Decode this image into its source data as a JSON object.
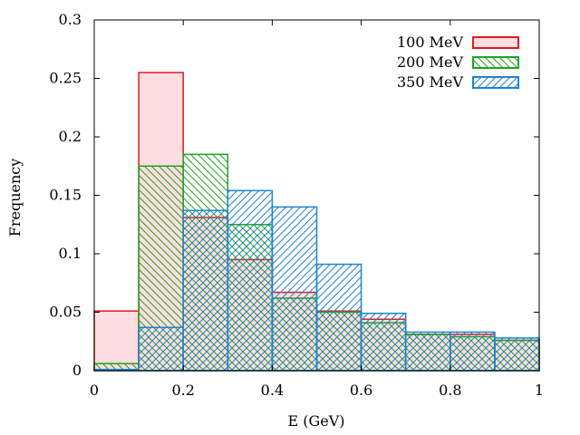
{
  "chart_data": {
    "type": "bar",
    "subtype": "overlaid step histogram",
    "xlabel": "E (GeV)",
    "ylabel": "Frequency",
    "xlim": [
      0,
      1
    ],
    "ylim": [
      0,
      0.3
    ],
    "x_ticks": [
      "0",
      "0.2",
      "0.4",
      "0.6",
      "0.8",
      "1"
    ],
    "x_tick_values": [
      0,
      0.2,
      0.4,
      0.6,
      0.8,
      1.0
    ],
    "y_ticks": [
      "0",
      "0.05",
      "0.1",
      "0.15",
      "0.2",
      "0.25",
      "0.3"
    ],
    "y_tick_values": [
      0,
      0.05,
      0.1,
      0.15,
      0.2,
      0.25,
      0.3
    ],
    "bin_edges": [
      0.0,
      0.1,
      0.2,
      0.3,
      0.4,
      0.5,
      0.6,
      0.7,
      0.8,
      0.9,
      1.0
    ],
    "legend_position": "top-right",
    "grid": false,
    "series": [
      {
        "name": "100 MeV",
        "color": "#e41a1c",
        "fill": "solid light pink",
        "fill_color": "#ffdde0",
        "values": [
          0.051,
          0.255,
          0.131,
          0.095,
          0.067,
          0.051,
          0.044,
          0.031,
          0.031,
          0.026
        ]
      },
      {
        "name": "200 MeV",
        "color": "#21a321",
        "fill": "hatch back-diagonal",
        "values": [
          0.006,
          0.175,
          0.185,
          0.125,
          0.062,
          0.05,
          0.041,
          0.031,
          0.029,
          0.026
        ]
      },
      {
        "name": "350 MeV",
        "color": "#1f82d2",
        "fill": "hatch forward-diagonal",
        "values": [
          0.001,
          0.037,
          0.137,
          0.154,
          0.14,
          0.091,
          0.049,
          0.033,
          0.033,
          0.028
        ]
      }
    ]
  }
}
